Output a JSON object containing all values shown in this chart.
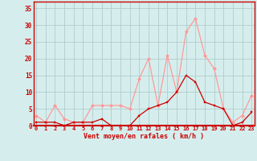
{
  "x": [
    0,
    1,
    2,
    3,
    4,
    5,
    6,
    7,
    8,
    9,
    10,
    11,
    12,
    13,
    14,
    15,
    16,
    17,
    18,
    19,
    20,
    21,
    22,
    23
  ],
  "rafales": [
    3,
    1,
    6,
    2,
    1,
    1,
    6,
    6,
    6,
    6,
    5,
    14,
    20,
    6,
    21,
    10,
    28,
    32,
    21,
    17,
    5,
    1,
    3,
    9
  ],
  "moyen": [
    1,
    1,
    1,
    0,
    1,
    1,
    1,
    2,
    0,
    0,
    0,
    3,
    5,
    6,
    7,
    10,
    15,
    13,
    7,
    6,
    5,
    0,
    1,
    4
  ],
  "bg_color": "#d5eeed",
  "grid_color": "#b0cccc",
  "rafales_color": "#ff9999",
  "moyen_color": "#cc0000",
  "xlabel": "Vent moyen/en rafales ( km/h )",
  "xlabel_color": "#cc0000",
  "yticks": [
    0,
    5,
    10,
    15,
    20,
    25,
    30,
    35
  ],
  "ylim": [
    0,
    37
  ],
  "xlim": [
    -0.3,
    23.3
  ]
}
